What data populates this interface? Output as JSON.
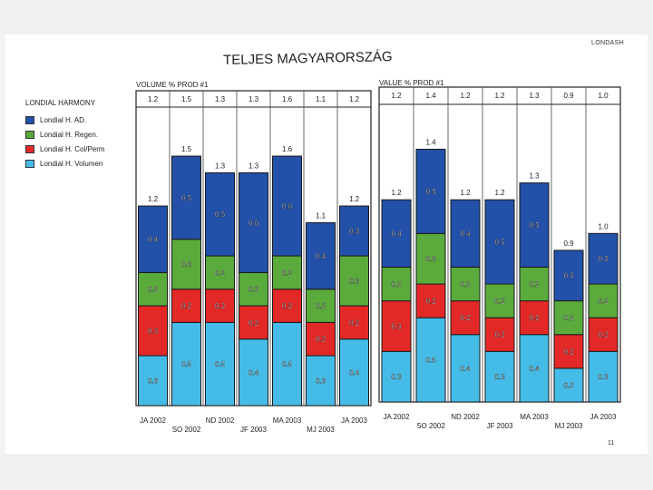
{
  "brand": "LONDASH",
  "page_title": "TELJES MAGYARORSZÁG",
  "page_number": "11",
  "legend": {
    "title": "LONDIAL HARMONY",
    "items": [
      {
        "label": "Londial H. AD.",
        "color": "#2350a8"
      },
      {
        "label": "Londial H. Regen.",
        "color": "#5aaa3c"
      },
      {
        "label": "Londial H. Col/Perm",
        "color": "#e32828"
      },
      {
        "label": "Londial H. Volumen",
        "color": "#45bce8"
      }
    ]
  },
  "chart_data": [
    {
      "type": "bar",
      "stacked": true,
      "title": "VOLUME % PROD #1",
      "categories": [
        "JA 2002",
        "SO 2002",
        "ND 2002",
        "JF 2003",
        "MA 2003",
        "MJ 2003",
        "JA 2003"
      ],
      "totals": [
        "1.2",
        "1.5",
        "1.3",
        "1.3",
        "1.6",
        "1.1",
        "1.2"
      ],
      "series": [
        {
          "name": "Londial H. Volumen",
          "values": [
            0.3,
            0.5,
            0.5,
            0.4,
            0.5,
            0.3,
            0.4
          ]
        },
        {
          "name": "Londial H. Col/Perm",
          "values": [
            0.3,
            0.2,
            0.2,
            0.2,
            0.2,
            0.2,
            0.2
          ]
        },
        {
          "name": "Londial H. Regen.",
          "values": [
            0.2,
            0.3,
            0.2,
            0.2,
            0.2,
            0.2,
            0.3
          ]
        },
        {
          "name": "Londial H. AD.",
          "values": [
            0.4,
            0.5,
            0.5,
            0.6,
            0.6,
            0.4,
            0.3
          ]
        }
      ]
    },
    {
      "type": "bar",
      "stacked": true,
      "title": "VALUE % PROD #1",
      "categories": [
        "JA 2002",
        "SO 2002",
        "ND 2002",
        "JF 2003",
        "MA 2003",
        "MJ 2003",
        "JA 2003"
      ],
      "totals": [
        "1.2",
        "1.4",
        "1.2",
        "1.2",
        "1.3",
        "0.9",
        "1.0"
      ],
      "series": [
        {
          "name": "Londial H. Volumen",
          "values": [
            0.3,
            0.5,
            0.4,
            0.3,
            0.4,
            0.2,
            0.3
          ]
        },
        {
          "name": "Londial H. Col/Perm",
          "values": [
            0.3,
            0.2,
            0.2,
            0.2,
            0.2,
            0.2,
            0.2
          ]
        },
        {
          "name": "Londial H. Regen.",
          "values": [
            0.2,
            0.3,
            0.2,
            0.2,
            0.2,
            0.2,
            0.2
          ]
        },
        {
          "name": "Londial H. AD.",
          "values": [
            0.4,
            0.5,
            0.4,
            0.5,
            0.5,
            0.3,
            0.3
          ]
        }
      ]
    }
  ]
}
